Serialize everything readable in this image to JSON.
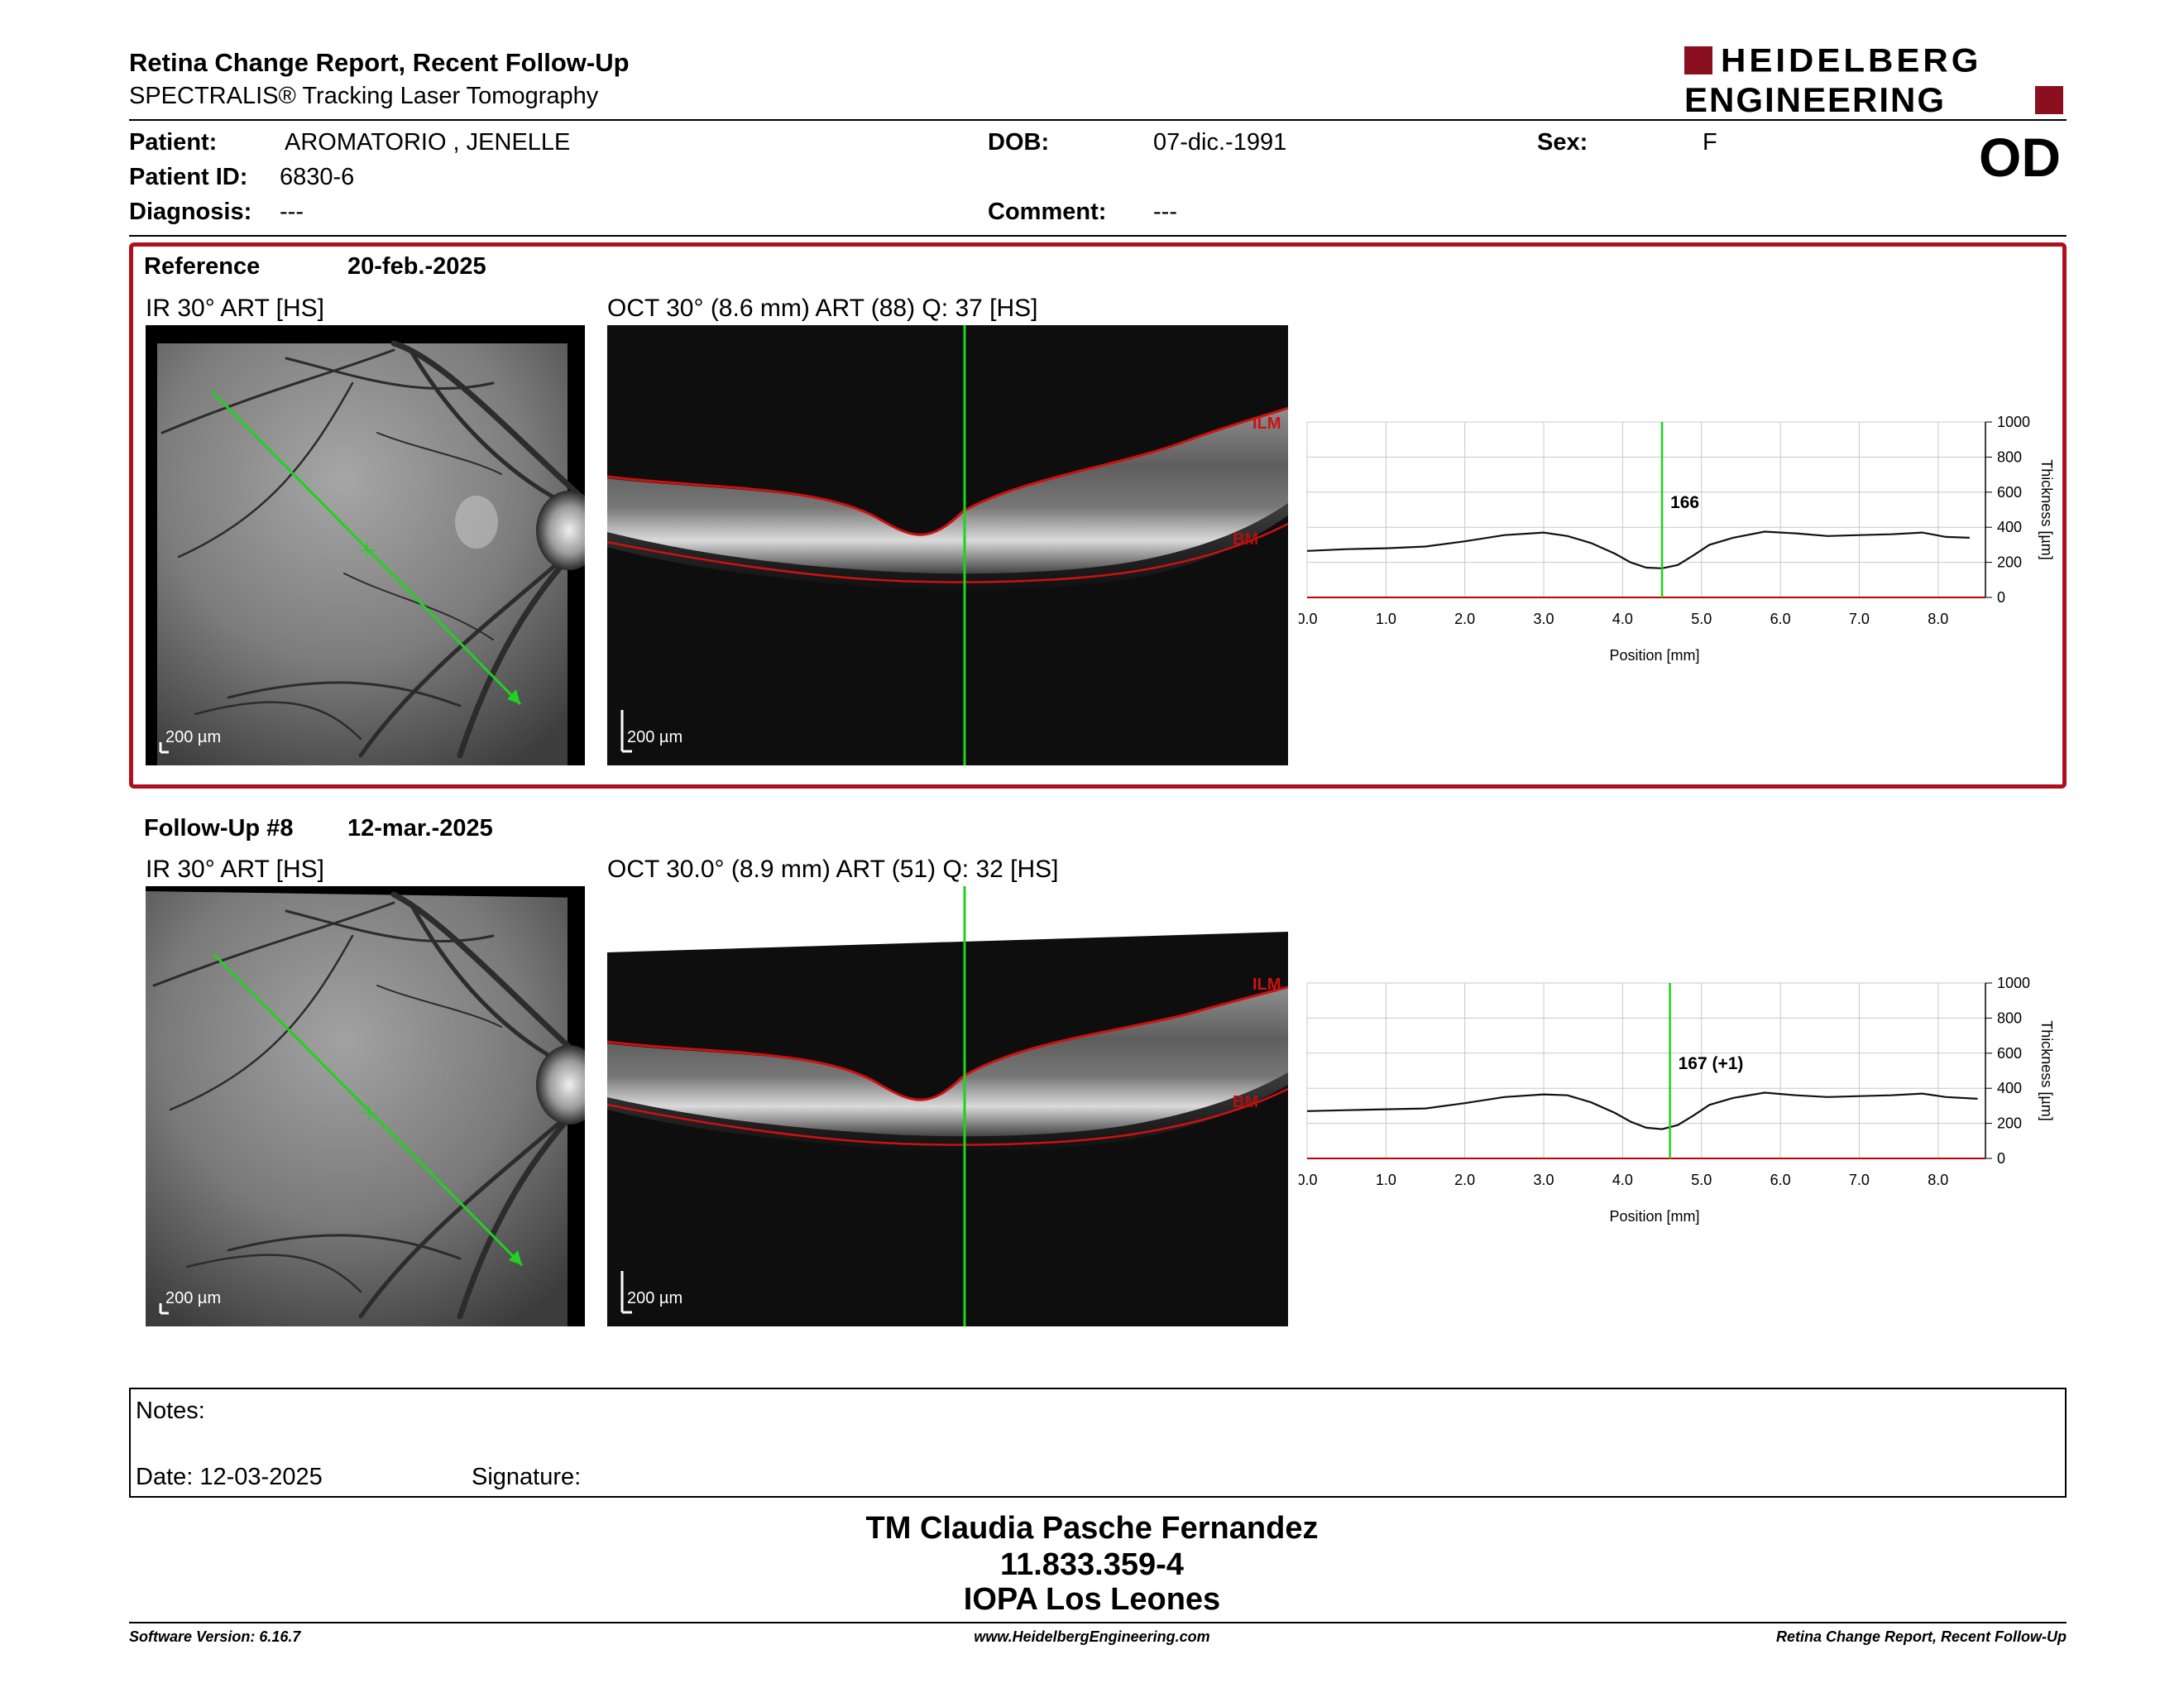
{
  "header": {
    "title": "Retina Change Report, Recent Follow-Up",
    "subtitle": "SPECTRALIS® Tracking Laser Tomography",
    "logo_line1": "HEIDELBERG",
    "logo_line2": "ENGINEERING"
  },
  "patient": {
    "patient_label": "Patient:",
    "patient_name": "AROMATORIO , JENELLE",
    "id_label": "Patient ID:",
    "id_value": "6830-6",
    "diagnosis_label": "Diagnosis:",
    "diagnosis_value": "---",
    "dob_label": "DOB:",
    "dob_value": "07-dic.-1991",
    "comment_label": "Comment:",
    "comment_value": "---",
    "sex_label": "Sex:",
    "sex_value": "F",
    "eye": "OD"
  },
  "reference": {
    "label": "Reference",
    "date": "20-feb.-2025",
    "ir_caption": "IR 30° ART [HS]",
    "oct_caption": "OCT 30° (8.6 mm) ART (88) Q: 37 [HS]",
    "scale": "200 µm",
    "ilm": "ILM",
    "bm": "BM"
  },
  "followup": {
    "label": "Follow-Up #8",
    "date": "12-mar.-2025",
    "ir_caption": "IR 30° ART [HS]",
    "oct_caption": "OCT 30.0° (8.9 mm) ART (51) Q: 32 [HS]",
    "scale": "200 µm",
    "ilm": "ILM",
    "bm": "BM"
  },
  "chart_data": [
    {
      "type": "line",
      "xlabel": "Position [mm]",
      "ylabel": "Thickness [µm]",
      "xlim": [
        0,
        8.6
      ],
      "ylim": [
        0,
        1000
      ],
      "x_ticks": [
        "0.0",
        "1.0",
        "2.0",
        "3.0",
        "4.0",
        "5.0",
        "6.0",
        "7.0",
        "8.0"
      ],
      "y_ticks": [
        "0",
        "200",
        "400",
        "600",
        "800",
        "1000"
      ],
      "grid": true,
      "marker_x": 4.5,
      "marker_label": "166",
      "series": [
        {
          "x": [
            0.0,
            0.5,
            1.0,
            1.5,
            2.0,
            2.5,
            3.0,
            3.3,
            3.6,
            3.9,
            4.1,
            4.3,
            4.5,
            4.7,
            4.9,
            5.1,
            5.4,
            5.8,
            6.2,
            6.6,
            7.0,
            7.4,
            7.8,
            8.1,
            8.4
          ],
          "values": [
            265,
            275,
            280,
            290,
            320,
            355,
            370,
            350,
            310,
            250,
            200,
            170,
            166,
            185,
            240,
            300,
            340,
            375,
            365,
            350,
            355,
            360,
            370,
            345,
            340
          ]
        }
      ]
    },
    {
      "type": "line",
      "xlabel": "Position [mm]",
      "ylabel": "Thickness [µm]",
      "xlim": [
        0,
        8.6
      ],
      "ylim": [
        0,
        1000
      ],
      "x_ticks": [
        "0.0",
        "1.0",
        "2.0",
        "3.0",
        "4.0",
        "5.0",
        "6.0",
        "7.0",
        "8.0"
      ],
      "y_ticks": [
        "0",
        "200",
        "400",
        "600",
        "800",
        "1000"
      ],
      "grid": true,
      "marker_x": 4.6,
      "marker_label": "167 (+1)",
      "series": [
        {
          "x": [
            0.0,
            0.5,
            1.0,
            1.5,
            2.0,
            2.5,
            3.0,
            3.3,
            3.6,
            3.9,
            4.1,
            4.3,
            4.5,
            4.7,
            4.9,
            5.1,
            5.4,
            5.8,
            6.2,
            6.6,
            7.0,
            7.4,
            7.8,
            8.1,
            8.5
          ],
          "values": [
            270,
            275,
            280,
            285,
            315,
            350,
            365,
            360,
            320,
            260,
            210,
            175,
            167,
            190,
            245,
            305,
            345,
            375,
            360,
            350,
            355,
            360,
            370,
            350,
            340
          ]
        }
      ]
    }
  ],
  "notes": {
    "label": "Notes:",
    "date_label": "Date: 12-03-2025",
    "signature_label": "Signature:"
  },
  "signer": {
    "name": "TM Claudia Pasche Fernandez",
    "rut": "11.833.359-4",
    "org": "IOPA Los Leones"
  },
  "footer": {
    "left": "Software Version: 6.16.7",
    "center": "www.HeidelbergEngineering.com",
    "right": "Retina Change Report, Recent Follow-Up"
  },
  "colors": {
    "brand_red": "#b0101e",
    "scan_green": "#1fd21f",
    "layer_red": "#d01010"
  }
}
